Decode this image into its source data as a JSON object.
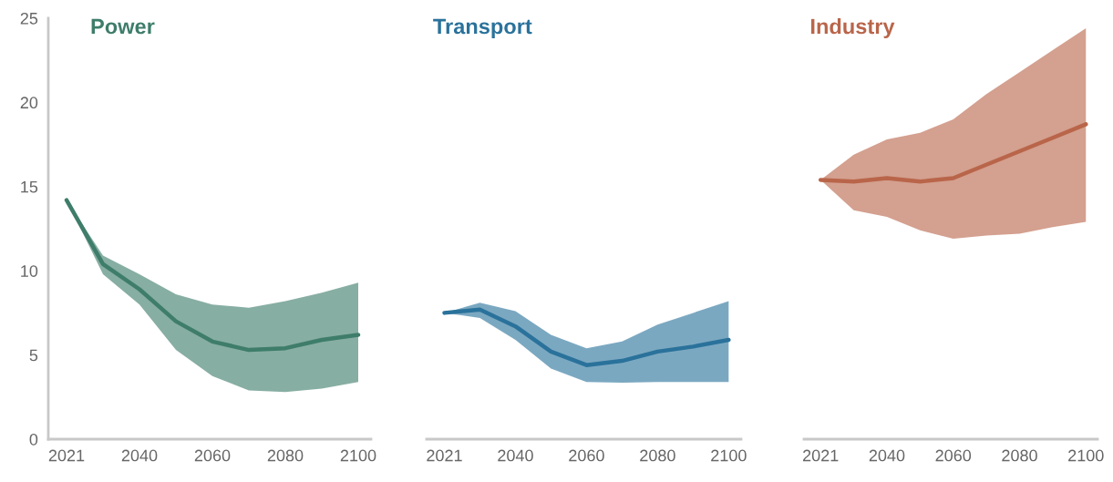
{
  "chart_data": [
    {
      "type": "line",
      "title": "Power",
      "categories": [
        "2021",
        null,
        "2040",
        null,
        "2060",
        null,
        "2080",
        null,
        "2100"
      ],
      "ylim": [
        0,
        25
      ],
      "yticks": [
        0,
        5,
        10,
        15,
        20,
        25
      ],
      "grid": false,
      "series": [
        {
          "color": "#3e7d6a",
          "values": [
            14.2,
            10.4,
            8.9,
            7.0,
            5.8,
            5.3,
            5.4,
            5.9,
            6.2
          ],
          "lower": [
            14.2,
            9.8,
            8.0,
            5.3,
            3.75,
            2.9,
            2.8,
            3.0,
            3.4
          ],
          "upper": [
            14.2,
            10.9,
            9.8,
            8.6,
            8.0,
            7.8,
            8.2,
            8.7,
            9.3
          ]
        }
      ]
    },
    {
      "type": "line",
      "title": "Transport",
      "categories": [
        "2021",
        null,
        "2040",
        null,
        "2060",
        null,
        "2080",
        null,
        "2100"
      ],
      "ylim": [
        0,
        25
      ],
      "yticks": [
        0,
        5,
        10,
        15,
        20,
        25
      ],
      "tick_labels": "x",
      "grid": false,
      "series": [
        {
          "color": "#2a729b",
          "values": [
            7.5,
            7.7,
            6.7,
            5.2,
            4.4,
            4.65,
            5.2,
            5.5,
            5.9
          ],
          "lower": [
            7.5,
            7.2,
            5.9,
            4.2,
            3.4,
            3.35,
            3.4,
            3.4,
            3.4
          ],
          "upper": [
            7.5,
            8.1,
            7.6,
            6.2,
            5.4,
            5.8,
            6.8,
            7.5,
            8.2
          ]
        }
      ]
    },
    {
      "type": "line",
      "title": "Industry",
      "categories": [
        "2021",
        null,
        "2040",
        null,
        "2060",
        null,
        "2080",
        null,
        "2100"
      ],
      "ylim": [
        0,
        25
      ],
      "yticks": [
        0,
        5,
        10,
        15,
        20,
        25
      ],
      "tick_labels": "x",
      "grid": false,
      "series": [
        {
          "color": "#b9654a",
          "values": [
            15.4,
            15.3,
            15.5,
            15.3,
            15.5,
            16.3,
            17.1,
            17.9,
            18.7
          ],
          "lower": [
            15.4,
            13.6,
            13.2,
            12.4,
            11.9,
            12.1,
            12.2,
            12.6,
            12.9
          ],
          "upper": [
            15.4,
            16.9,
            17.8,
            18.2,
            19.0,
            20.5,
            21.8,
            23.1,
            24.4
          ]
        }
      ]
    }
  ]
}
